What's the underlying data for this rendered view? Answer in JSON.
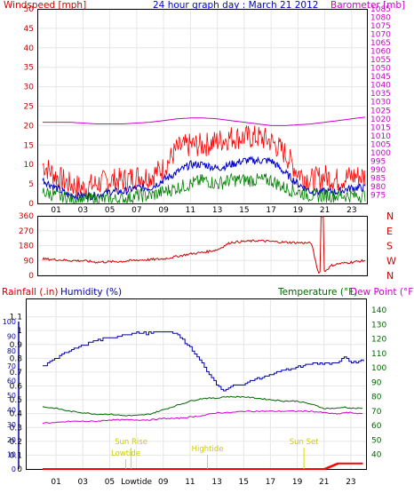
{
  "header": {
    "windspeed_label": "Windspeed [mph]",
    "title": "24 hour graph day : March 21 2012",
    "barometer_label": "Barometer [mb]"
  },
  "lower_header": {
    "rainfall_label": "Rainfall (.in)",
    "humidity_label": "Humidity (%)",
    "temperature_label": "Temperature (°F)",
    "dewpoint_label": "Dew Point (°F)"
  },
  "colors": {
    "wind": "#ff0000",
    "gust": "#ff0000",
    "average": "#0000cc",
    "low": "#008000",
    "barometer": "#cc00cc",
    "direction": "#cc0000",
    "humidity": "#0000aa",
    "temperature": "#006600",
    "dewpoint": "#cc00cc",
    "rain": "#ff0000",
    "grid": "#e6e6e6",
    "marker": "#dddd00"
  },
  "chart_data": [
    {
      "type": "line",
      "title": "24 hour graph day : March 21 2012",
      "xlabel": "",
      "x_ticks": [
        "01",
        "03",
        "05",
        "07",
        "09",
        "11",
        "13",
        "15",
        "17",
        "19",
        "21",
        "23"
      ],
      "ylabel": "Windspeed [mph]",
      "ylim": [
        0,
        50
      ],
      "y_ticks": [
        0,
        5,
        10,
        15,
        20,
        25,
        30,
        35,
        40,
        45,
        50
      ],
      "y2label": "Barometer [mb]",
      "y2lim": [
        970,
        1085
      ],
      "y2_ticks": [
        975,
        980,
        985,
        990,
        995,
        1000,
        1005,
        1010,
        1015,
        1020,
        1025,
        1030,
        1035,
        1040,
        1045,
        1050,
        1055,
        1060,
        1065,
        1070,
        1075,
        1080,
        1085
      ],
      "x_hours": [
        0,
        1,
        2,
        3,
        4,
        5,
        6,
        7,
        8,
        9,
        10,
        11,
        12,
        13,
        14,
        15,
        16,
        17,
        18,
        19,
        20,
        21,
        22,
        23,
        24
      ],
      "series": [
        {
          "axis": "left",
          "values": [
            10,
            7,
            5,
            4,
            5,
            6,
            6,
            7,
            7,
            9,
            14,
            15,
            15,
            16,
            17,
            17,
            17,
            16,
            13,
            8,
            6,
            7,
            6,
            7,
            7
          ]
        },
        {
          "axis": "left",
          "values": [
            6,
            4,
            2,
            2,
            2,
            3,
            3,
            4,
            4,
            6,
            8,
            10,
            10,
            9,
            10,
            11,
            11,
            11,
            8,
            5,
            3,
            3,
            3,
            4,
            4
          ]
        },
        {
          "axis": "left",
          "values": [
            3,
            2,
            1,
            1,
            1,
            1,
            1,
            2,
            2,
            3,
            4,
            5,
            6,
            5,
            6,
            6,
            6,
            6,
            4,
            3,
            2,
            2,
            2,
            2,
            2
          ]
        },
        {
          "axis": "right",
          "values": [
            1018,
            1018,
            1018,
            1017.5,
            1017,
            1017,
            1017,
            1017.5,
            1018,
            1019,
            1020,
            1020.5,
            1020.5,
            1020,
            1019,
            1018,
            1017,
            1016,
            1016,
            1016.5,
            1017,
            1018,
            1019,
            1020,
            1021
          ]
        }
      ]
    },
    {
      "type": "line",
      "title": "",
      "ylim": [
        0,
        360
      ],
      "y_ticks": [
        0,
        90,
        180,
        270,
        360
      ],
      "y2_ticks": [
        "N",
        "W",
        "S",
        "E",
        "N"
      ],
      "x_hours": [
        0,
        1,
        2,
        3,
        4,
        5,
        6,
        7,
        8,
        9,
        10,
        11,
        12,
        13,
        14,
        15,
        16,
        17,
        18,
        19,
        20,
        20.5,
        21,
        21.5,
        22,
        23,
        24
      ],
      "series": [
        {
          "values": [
            100,
            95,
            90,
            88,
            80,
            82,
            85,
            92,
            95,
            100,
            115,
            130,
            140,
            155,
            200,
            205,
            210,
            205,
            200,
            198,
            195,
            20,
            25,
            60,
            70,
            80,
            90
          ]
        }
      ]
    },
    {
      "type": "line",
      "title": "",
      "x_ticks": [
        "01",
        "03",
        "05",
        "Lowtide",
        "09",
        "11",
        "13",
        "15",
        "17",
        "19",
        "21",
        "23"
      ],
      "ylabel": "Rainfall (.in)",
      "ylim": [
        0,
        1.2
      ],
      "y_ticks": [
        0,
        0.1,
        0.2,
        0.3,
        0.4,
        0.5,
        0.6,
        0.7,
        0.8,
        0.9,
        1,
        1.1
      ],
      "y2label": "Temperature (°F)",
      "y2lim": [
        30,
        145
      ],
      "y2_ticks": [
        40,
        50,
        60,
        70,
        80,
        90,
        100,
        110,
        120,
        130,
        140
      ],
      "humidity_ticks": [
        0,
        10,
        20,
        30,
        40,
        50,
        60,
        70,
        80,
        90,
        100
      ],
      "x_hours": [
        0,
        1,
        2,
        3,
        4,
        5,
        6,
        7,
        8,
        9,
        10,
        11,
        12,
        13,
        13.5,
        14,
        15,
        16,
        17,
        18,
        19,
        20,
        21,
        22,
        22.5,
        23,
        24
      ],
      "series": [
        {
          "axis": "humidity",
          "values": [
            70,
            75,
            80,
            84,
            87,
            89,
            91,
            92,
            92,
            93,
            92,
            82,
            70,
            57,
            53,
            56,
            58,
            61,
            64,
            67,
            69,
            71,
            72,
            72,
            76,
            72,
            74
          ]
        },
        {
          "axis": "temperature",
          "values": [
            73,
            72,
            70,
            69,
            68,
            68,
            67,
            67,
            68,
            71,
            74,
            77,
            79,
            79,
            80,
            80,
            80,
            79,
            78,
            77,
            77,
            75,
            72,
            72,
            73,
            72,
            72
          ]
        },
        {
          "axis": "temperature",
          "values": [
            62,
            62,
            63,
            63,
            63,
            64,
            64,
            64,
            64,
            65,
            65,
            66,
            67,
            69,
            69,
            69,
            70,
            70,
            70,
            70,
            70,
            70,
            69,
            68,
            69,
            69,
            68
          ]
        },
        {
          "axis": "rain",
          "values": [
            0,
            0,
            0,
            0,
            0,
            0,
            0,
            0,
            0,
            0,
            0,
            0,
            0,
            0,
            0,
            0,
            0,
            0,
            0,
            0,
            0,
            0,
            0,
            0.04,
            0.04,
            0.04,
            0.04
          ]
        }
      ],
      "annotations": [
        "Sun Rise",
        "Lowtide",
        "Hightide",
        "Sun Set"
      ]
    }
  ]
}
